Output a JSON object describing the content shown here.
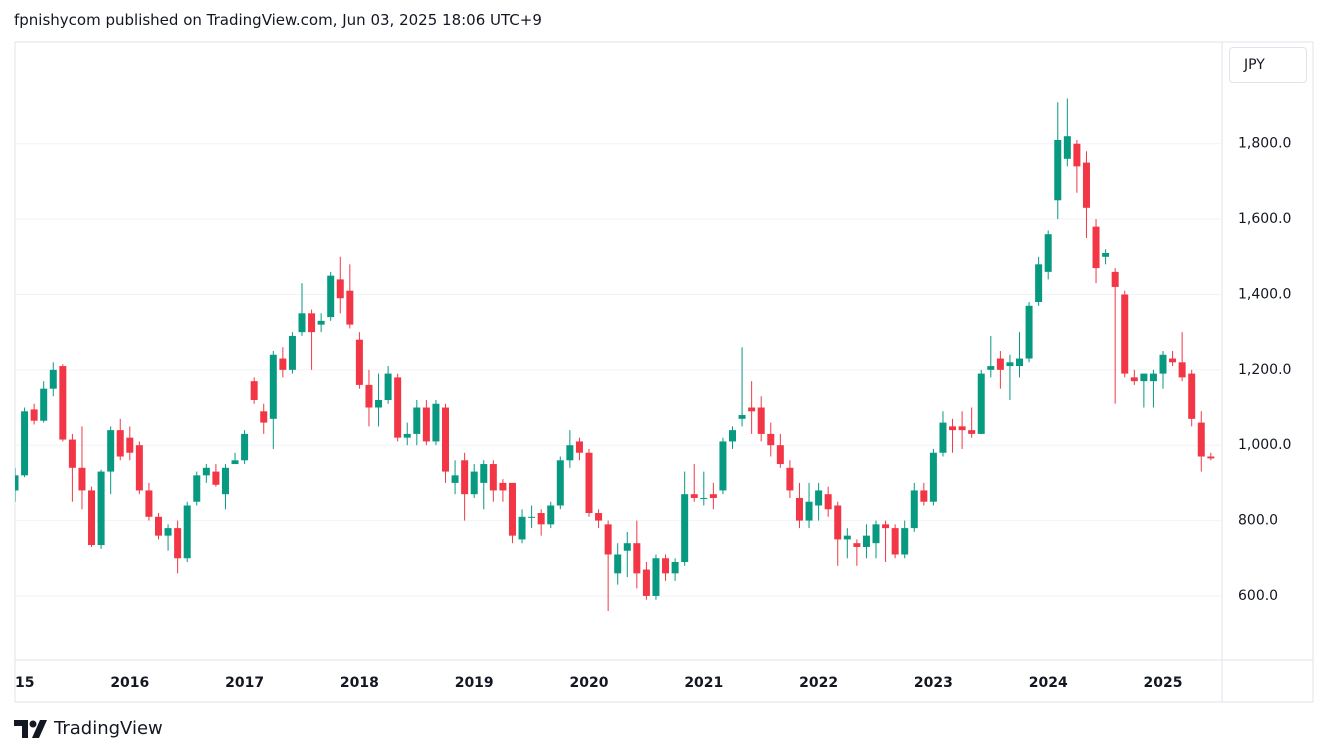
{
  "header": {
    "text": "fpnishycom published on TradingView.com, Jun 03, 2025 18:06 UTC+9"
  },
  "currency": "JPY",
  "footer": {
    "brand": "TradingView"
  },
  "chart_data": {
    "type": "candlestick",
    "up_color": "#089981",
    "down_color": "#f23645",
    "grid": true,
    "ylim": [
      430,
      2070
    ],
    "yticks": [
      {
        "value": 600,
        "label": "600.0"
      },
      {
        "value": 800,
        "label": "800.0"
      },
      {
        "value": 1000,
        "label": "1,000.0"
      },
      {
        "value": 1200,
        "label": "1,200.0"
      },
      {
        "value": 1400,
        "label": "1,400.0"
      },
      {
        "value": 1600,
        "label": "1,600.0"
      },
      {
        "value": 1800,
        "label": "1,800.0"
      }
    ],
    "categories": [
      "15",
      null,
      null,
      null,
      null,
      null,
      null,
      null,
      null,
      null,
      null,
      null,
      "2016",
      null,
      null,
      null,
      null,
      null,
      null,
      null,
      null,
      null,
      null,
      null,
      "2017",
      null,
      null,
      null,
      null,
      null,
      null,
      null,
      null,
      null,
      null,
      null,
      "2018",
      null,
      null,
      null,
      null,
      null,
      null,
      null,
      null,
      null,
      null,
      null,
      "2019",
      null,
      null,
      null,
      null,
      null,
      null,
      null,
      null,
      null,
      null,
      null,
      "2020",
      null,
      null,
      null,
      null,
      null,
      null,
      null,
      null,
      null,
      null,
      null,
      "2021",
      null,
      null,
      null,
      null,
      null,
      null,
      null,
      null,
      null,
      null,
      null,
      "2022",
      null,
      null,
      null,
      null,
      null,
      null,
      null,
      null,
      null,
      null,
      null,
      "2023",
      null,
      null,
      null,
      null,
      null,
      null,
      null,
      null,
      null,
      null,
      null,
      "2024",
      null,
      null,
      null,
      null,
      null,
      null,
      null,
      null,
      null,
      null,
      null,
      "2025",
      null,
      null,
      null,
      null,
      null
    ],
    "open": [
      880,
      920,
      1095,
      1065,
      1150,
      1210,
      1015,
      940,
      880,
      735,
      930,
      1040,
      1020,
      1000,
      880,
      810,
      760,
      780,
      700,
      850,
      920,
      930,
      870,
      950,
      960,
      1170,
      1090,
      1070,
      1230,
      1200,
      1300,
      1350,
      1320,
      1340,
      1440,
      1410,
      1280,
      1160,
      1100,
      1120,
      1180,
      1020,
      1030,
      1100,
      1010,
      1100,
      900,
      960,
      870,
      900,
      950,
      900,
      900,
      750,
      810,
      820,
      790,
      840,
      960,
      1010,
      980,
      820,
      790,
      660,
      720,
      740,
      670,
      600,
      700,
      660,
      690,
      870,
      860,
      870,
      880,
      1010,
      1070,
      1100,
      1100,
      1030,
      1000,
      940,
      860,
      800,
      840,
      870,
      840,
      750,
      740,
      730,
      740,
      790,
      780,
      710,
      780,
      880,
      850,
      980,
      1050,
      1050,
      1040,
      1030,
      1200,
      1230,
      1210,
      1210,
      1230,
      1380,
      1460,
      1650,
      1760,
      1800,
      1750,
      1580,
      1500,
      1460,
      1400,
      1180,
      1170,
      1170,
      1190,
      1230,
      1220,
      1190,
      1060,
      970
    ],
    "high": [
      940,
      1100,
      1110,
      1170,
      1220,
      1215,
      1030,
      1050,
      890,
      935,
      1050,
      1070,
      1050,
      1010,
      900,
      820,
      790,
      800,
      850,
      930,
      950,
      950,
      950,
      980,
      1040,
      1180,
      1110,
      1250,
      1260,
      1300,
      1430,
      1360,
      1350,
      1460,
      1500,
      1480,
      1300,
      1200,
      1190,
      1210,
      1190,
      1060,
      1120,
      1120,
      1120,
      1110,
      960,
      980,
      950,
      960,
      960,
      910,
      900,
      830,
      840,
      830,
      850,
      970,
      1040,
      1020,
      990,
      830,
      800,
      740,
      770,
      800,
      690,
      710,
      710,
      700,
      930,
      950,
      930,
      900,
      1020,
      1050,
      1260,
      1170,
      1130,
      1060,
      1030,
      960,
      900,
      900,
      900,
      890,
      850,
      780,
      750,
      790,
      800,
      800,
      790,
      800,
      900,
      900,
      990,
      1090,
      1070,
      1090,
      1100,
      1200,
      1290,
      1250,
      1240,
      1300,
      1380,
      1500,
      1570,
      1910,
      1920,
      1810,
      1780,
      1600,
      1520,
      1470,
      1410,
      1200,
      1190,
      1200,
      1250,
      1250,
      1300,
      1200,
      1090,
      980
    ],
    "low": [
      850,
      915,
      1055,
      1060,
      1130,
      1010,
      850,
      830,
      730,
      725,
      870,
      960,
      960,
      870,
      800,
      750,
      720,
      660,
      690,
      840,
      900,
      890,
      830,
      950,
      950,
      1110,
      1030,
      990,
      1180,
      1190,
      1290,
      1200,
      1300,
      1330,
      1350,
      1310,
      1150,
      1050,
      1050,
      1110,
      1010,
      1000,
      1000,
      1000,
      1000,
      900,
      870,
      800,
      860,
      830,
      850,
      850,
      740,
      740,
      780,
      760,
      780,
      830,
      940,
      960,
      810,
      780,
      560,
      630,
      650,
      620,
      590,
      590,
      640,
      640,
      680,
      850,
      840,
      830,
      870,
      990,
      1050,
      1030,
      1010,
      970,
      940,
      860,
      780,
      780,
      800,
      810,
      680,
      700,
      680,
      700,
      700,
      690,
      700,
      700,
      770,
      840,
      840,
      970,
      980,
      990,
      1020,
      1030,
      1180,
      1150,
      1120,
      1180,
      1220,
      1370,
      1440,
      1600,
      1740,
      1670,
      1550,
      1430,
      1480,
      1110,
      1180,
      1160,
      1100,
      1100,
      1150,
      1210,
      1170,
      1050,
      930,
      960
    ],
    "close": [
      920,
      1090,
      1065,
      1150,
      1200,
      1015,
      940,
      880,
      735,
      930,
      1040,
      970,
      980,
      880,
      810,
      760,
      780,
      700,
      840,
      920,
      940,
      895,
      940,
      960,
      1030,
      1120,
      1060,
      1240,
      1200,
      1290,
      1350,
      1300,
      1330,
      1450,
      1390,
      1320,
      1160,
      1100,
      1120,
      1190,
      1020,
      1030,
      1100,
      1010,
      1110,
      930,
      920,
      870,
      930,
      950,
      880,
      880,
      760,
      810,
      810,
      790,
      840,
      960,
      1000,
      980,
      820,
      800,
      710,
      710,
      740,
      660,
      600,
      700,
      660,
      690,
      870,
      860,
      860,
      860,
      1010,
      1040,
      1080,
      1090,
      1030,
      1000,
      950,
      880,
      800,
      850,
      880,
      830,
      750,
      760,
      730,
      760,
      790,
      780,
      710,
      780,
      880,
      850,
      980,
      1060,
      1040,
      1040,
      1030,
      1190,
      1210,
      1200,
      1220,
      1230,
      1370,
      1480,
      1560,
      1810,
      1820,
      1740,
      1630,
      1470,
      1510,
      1420,
      1190,
      1170,
      1190,
      1190,
      1240,
      1220,
      1180,
      1070,
      970,
      965
    ]
  }
}
